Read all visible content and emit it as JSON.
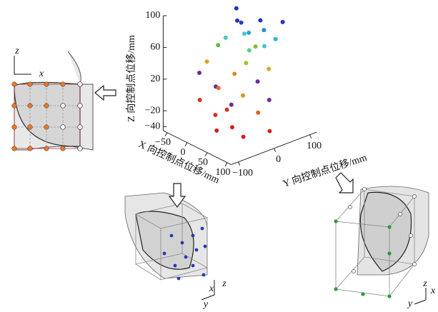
{
  "chart_data": {
    "type": "scatter3d",
    "xlabel": "X 向控制点位移/mm",
    "ylabel": "Y 向控制点位移/mm",
    "zlabel": "Z 向控制点位移/mm",
    "xlim": [
      -60,
      110
    ],
    "ylim": [
      -120,
      120
    ],
    "zlim": [
      -45,
      100
    ],
    "xticks": [
      {
        "value": -50,
        "label": "−50"
      },
      0,
      50,
      100
    ],
    "yticks": [
      {
        "value": -100,
        "label": "−100"
      },
      0,
      100
    ],
    "zticks": [
      100,
      60,
      20,
      {
        "value": -20,
        "label": "−20"
      },
      {
        "value": -40,
        "label": "−40"
      }
    ],
    "x": [
      -20,
      40,
      0,
      10,
      60,
      40,
      20,
      60,
      0,
      -20,
      50,
      30,
      -30,
      10,
      40,
      70,
      -40,
      20,
      60,
      -50,
      0,
      50,
      80,
      -20,
      30,
      70,
      -40,
      10,
      50,
      90,
      20,
      60,
      -10
    ],
    "y": [
      40,
      40,
      20,
      20,
      80,
      50,
      30,
      60,
      40,
      10,
      40,
      20,
      0,
      60,
      0,
      30,
      -20,
      -10,
      10,
      -30,
      -40,
      -20,
      20,
      -10,
      -30,
      0,
      -40,
      -20,
      -50,
      10,
      -60,
      -30,
      -30
    ],
    "values": [
      92,
      92,
      85,
      85,
      88,
      78,
      73,
      70,
      65,
      60,
      62,
      55,
      50,
      48,
      45,
      40,
      30,
      28,
      25,
      15,
      12,
      10,
      5,
      0,
      -5,
      -10,
      -15,
      -18,
      -25,
      -30,
      -35,
      -38,
      -28
    ],
    "colors": [
      "#2433c2",
      "#2433c2",
      "#2433c2",
      "#2a3fc8",
      "#2433c2",
      "#2c8ad6",
      "#30a0e0",
      "#30b4e0",
      "#3fc6d6",
      "#40cfbf",
      "#40c4d0",
      "#56d090",
      "#5fbf3f",
      "#82c02e",
      "#a6c422",
      "#c8b020",
      "#e0a020",
      "#e08a20",
      "#6a2aa0",
      "#6a2aa0",
      "#6a2aa0",
      "#e09020",
      "#6a2aa0",
      "#e07030",
      "#6a2aa0",
      "#e06020",
      "#d83020",
      "#d83020",
      "#d82020",
      "#d82020",
      "#d02020",
      "#d02020",
      "#d83020"
    ],
    "annotations": [
      "z",
      "x",
      "x",
      "z",
      "y",
      "x",
      "z",
      "y"
    ]
  }
}
